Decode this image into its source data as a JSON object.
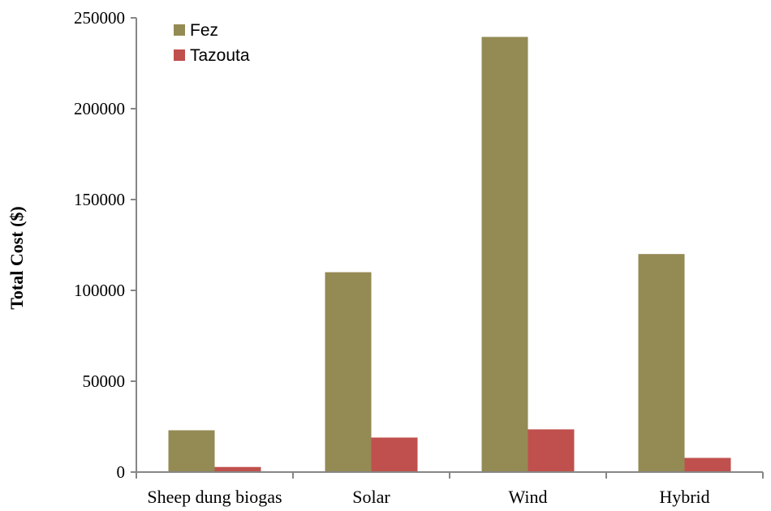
{
  "chart_data": {
    "type": "bar",
    "ylabel": "Total Cost ($)",
    "xlabel": "",
    "categories": [
      "Sheep dung biogas",
      "Solar",
      "Wind",
      "Hybrid"
    ],
    "series": [
      {
        "name": "Fez",
        "values": [
          23000,
          110000,
          239500,
          120000
        ],
        "color": "#948A54"
      },
      {
        "name": "Tazouta",
        "values": [
          2800,
          19000,
          23500,
          7800
        ],
        "color": "#C0504D"
      }
    ],
    "ylim": [
      0,
      250000
    ],
    "yticks": [
      0,
      50000,
      100000,
      150000,
      200000,
      250000
    ],
    "ytick_labels": [
      "0",
      "50000",
      "100000",
      "150000",
      "200000",
      "250000"
    ],
    "legend_position": "top-left",
    "grid": false
  }
}
